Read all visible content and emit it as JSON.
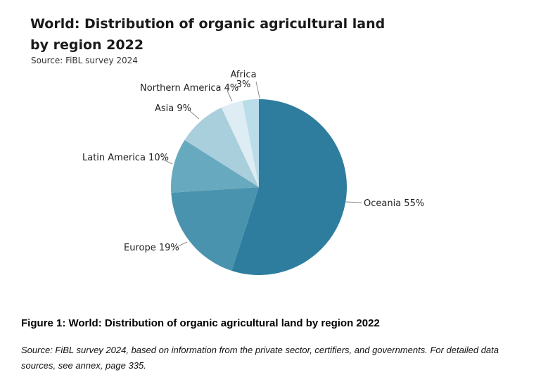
{
  "header": {
    "title_line1": "World: Distribution of organic agricultural land",
    "title_line2": "by region 2022",
    "source": "Source: FiBL survey 2024"
  },
  "chart_data": {
    "type": "pie",
    "title": "World: Distribution of organic agricultural land by region 2022",
    "source": "Source: FiBL survey 2024",
    "unit": "%",
    "start_angle": "top",
    "direction": "clockwise",
    "slices": [
      {
        "label": "Oceania",
        "value": 55,
        "display": "Oceania 55%",
        "color": "#2E7D9E"
      },
      {
        "label": "Europe",
        "value": 19,
        "display": "Europe 19%",
        "color": "#4A93AE"
      },
      {
        "label": "Latin America",
        "value": 10,
        "display": "Latin America 10%",
        "color": "#67A9BE"
      },
      {
        "label": "Asia",
        "value": 9,
        "display": "Asia 9%",
        "color": "#A9CFDC"
      },
      {
        "label": "Northern America",
        "value": 4,
        "display": "Northern America 4%",
        "color": "#DEEDF3"
      },
      {
        "label": "Africa",
        "value": 3,
        "display": "Africa 3%",
        "color": "#B9DEEA"
      }
    ]
  },
  "caption": {
    "figure_label": "Figure 1: World: Distribution of organic agricultural land by region 2022",
    "source_note_line1": "Source: FiBL survey 2024, based on information from the private sector, certifiers, and governments. For detailed data",
    "source_note_line2": "sources, see annex, page 335."
  }
}
